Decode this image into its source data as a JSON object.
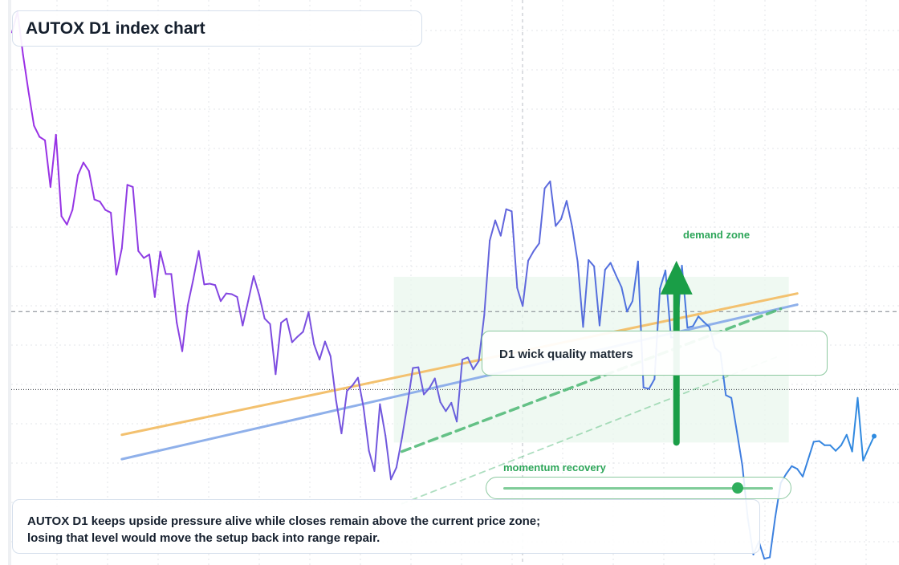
{
  "title": "AUTOX D1 index chart",
  "note": "D1 wick quality matters",
  "caption": {
    "line1": "AUTOX D1 keeps upside pressure alive while closes remain above the current price zone;",
    "line2": "losing that level would move the setup back into range repair."
  },
  "zone_label": "demand zone",
  "slider": {
    "label": "momentum recovery",
    "value": 0.87
  },
  "colors": {
    "price_start": "#9c2ee6",
    "price_mid": "#6a5fdc",
    "price_end": "#2f8be0",
    "orange_line": "#f3c16f",
    "blue_line": "#8fb0ea",
    "green_line": "#4cb874",
    "arrow": "#1a9e47",
    "zone": "#e9f7ee"
  },
  "chart_data": {
    "type": "line",
    "series": [
      {
        "values": [
          1070.5,
          1073.5,
          1067.3,
          1062.0,
          1057.1,
          1055.5,
          1055.0,
          1048.3,
          1055.8,
          1044.1,
          1042.9,
          1045.0,
          1050.0,
          1051.8,
          1050.6,
          1046.5,
          1046.2,
          1045.0,
          1044.6,
          1035.7,
          1039.5,
          1048.6,
          1048.3,
          1039.1,
          1038.1,
          1038.6,
          1032.5,
          1039.0,
          1035.8,
          1035.8,
          1028.8,
          1024.7,
          1031.3,
          1035.0,
          1039.1,
          1034.3,
          1034.4,
          1034.2,
          1031.9,
          1033.0,
          1032.9,
          1032.5,
          1028.4,
          1031.9,
          1035.5,
          1032.8,
          1029.4,
          1028.6,
          1021.4,
          1028.8,
          1029.4,
          1026.0,
          1026.8,
          1027.5,
          1030.3,
          1025.7,
          1023.5,
          1026.1,
          1024.0,
          1017.7,
          1012.9,
          1019.0,
          1019.8,
          1020.9,
          1016.7,
          1010.4,
          1007.5,
          1017.1,
          1012.6,
          1006.3,
          1008.0,
          1012.2,
          1017.0,
          1022.3,
          1022.4,
          1018.5,
          1019.4,
          1020.8,
          1017.4,
          1016.1,
          1017.3,
          1014.6,
          1023.5,
          1023.8,
          1022.1,
          1023.3,
          1029.9,
          1040.6,
          1043.5,
          1041.3,
          1045.1,
          1044.8,
          1033.8,
          1031.2,
          1037.7,
          1039.1,
          1040.2,
          1048.1,
          1049.1,
          1042.7,
          1043.7,
          1046.3,
          1042.6,
          1037.6,
          1028.2,
          1037.8,
          1036.9,
          1028.4,
          1036.4,
          1037.4,
          1035.6,
          1033.9,
          1030.4,
          1031.9,
          1037.6,
          1019.5,
          1019.3,
          1020.7,
          1033.7,
          1036.3,
          1026.7,
          1026.7,
          1037.0,
          1028.1,
          1028.3,
          1029.7,
          1028.9,
          1028.2,
          1025.2,
          1024.5,
          1018.4,
          1018.0,
          1013.2,
          1008.3,
          1000.7,
          995.5,
          997.4,
          994.9,
          995.1,
          1000.9,
          1005.8,
          1007.1,
          1008.2,
          1007.8,
          1006.7,
          1009.2,
          1011.7,
          1011.8,
          1011.2,
          1011.2,
          1010.4,
          1011.2,
          1012.7,
          1010.3,
          1018.0,
          1009.0,
          1010.8,
          1012.5
        ]
      }
    ],
    "ylim": [
      994,
      1074
    ],
    "horizontal_levels": [
      1030.4,
      1019.2
    ],
    "trendlines": [
      {
        "name": "orange",
        "start": [
          20,
          1012.7
        ],
        "end": [
          143,
          1033.0
        ]
      },
      {
        "name": "blue",
        "start": [
          20,
          1009.2
        ],
        "end": [
          143,
          1031.4
        ]
      },
      {
        "name": "green-dashed",
        "start": [
          71,
          1010.3
        ],
        "end": [
          140,
          1030.8
        ]
      },
      {
        "name": "green-faint",
        "start": [
          71,
          1002.8
        ],
        "end": [
          140,
          1024.1
        ]
      }
    ],
    "zone": {
      "x_start": 71,
      "x_end": 140,
      "y_low": 1011.6,
      "y_high": 1035.4
    },
    "arrow": {
      "x": 121,
      "from": 1011.6,
      "to": 1037.7
    },
    "gridlines": true
  }
}
